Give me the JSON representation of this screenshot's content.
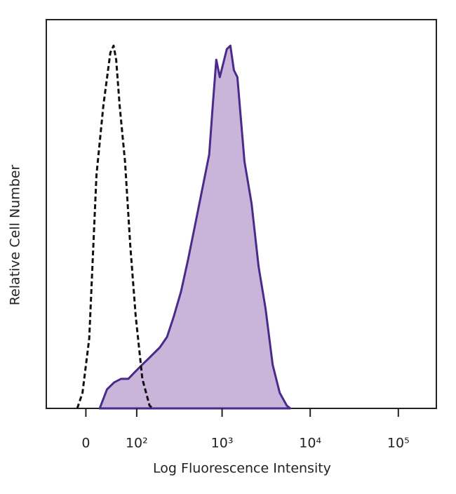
{
  "chart_data": {
    "type": "histogram-overlay",
    "xlabel": "Log Fluorescence Intensity",
    "ylabel": "Relative Cell Number",
    "xlim": [
      -70,
      270000
    ],
    "ylim": [
      0,
      100
    ],
    "xticks": [
      0,
      {
        "value": 100,
        "label": "10²"
      },
      {
        "value": 1000,
        "label": "10³"
      },
      {
        "value": 10000,
        "label": "10⁴"
      },
      {
        "value": 100000,
        "label": "10⁵"
      }
    ],
    "series": [
      {
        "color": "#4a2a8a",
        "fill": "#c9b5da",
        "dash": false,
        "x": [
          21,
          33,
          46,
          60,
          77,
          95,
          117,
          144,
          193,
          234,
          282,
          340,
          410,
          494,
          594,
          714,
          783,
          859,
          942,
          1032,
          1132,
          1242,
          1362,
          1493,
          1637,
          1795,
          2160,
          2596,
          3120,
          3750,
          4510,
          5430,
          5950
        ],
        "values": [
          0,
          4.9,
          6.7,
          7.6,
          7.6,
          9.4,
          11.2,
          13,
          15.7,
          18.4,
          23.8,
          30.1,
          38.3,
          47.3,
          56.3,
          65.3,
          78,
          89.7,
          85.2,
          88.8,
          92.4,
          93.3,
          87,
          85.2,
          74.4,
          63.5,
          52.7,
          36.5,
          25.6,
          11.2,
          4,
          0.7,
          0
        ]
      },
      {
        "color": "#111111",
        "fill": null,
        "dash": true,
        "x": [
          -13,
          -5,
          5,
          16,
          27,
          39,
          45,
          50,
          57,
          69,
          82,
          97,
          118,
          145,
          160
        ],
        "values": [
          0,
          4,
          18,
          60,
          78,
          91.5,
          93.3,
          89.7,
          78,
          63.5,
          41.9,
          23.8,
          7.6,
          0.7,
          0
        ]
      }
    ]
  }
}
